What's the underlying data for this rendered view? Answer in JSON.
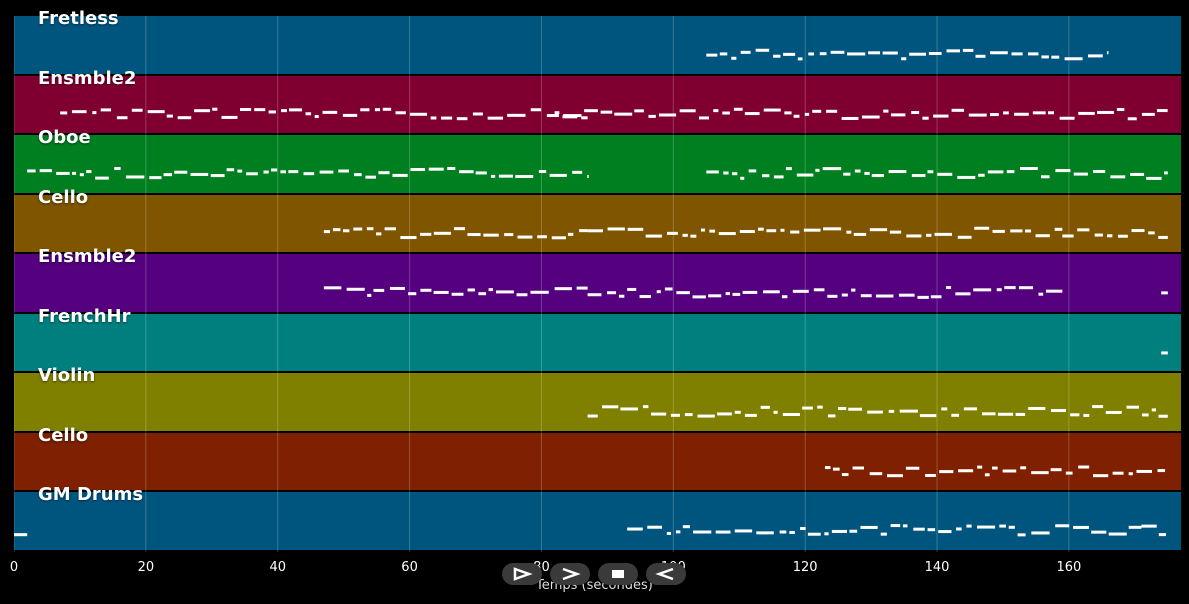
{
  "chart_data": {
    "type": "piano-roll",
    "xlabel": "Temps (secondes)",
    "xlim": [
      0,
      177
    ],
    "x_ticks": [
      0,
      20,
      40,
      60,
      80,
      100,
      120,
      140,
      160
    ],
    "grid": true,
    "tracks": [
      {
        "name": "Fretless",
        "color": "#00557f",
        "segments": [
          [
            105,
            166
          ]
        ]
      },
      {
        "name": "Ensmble2",
        "color": "#7f0030",
        "segments": [
          [
            7,
            87
          ],
          [
            82,
            175
          ]
        ]
      },
      {
        "name": "Oboe",
        "color": "#007f20",
        "segments": [
          [
            2,
            87
          ],
          [
            105,
            175
          ]
        ]
      },
      {
        "name": "Cello",
        "color": "#7f5500",
        "segments": [
          [
            47,
            87
          ],
          [
            87,
            159
          ],
          [
            159,
            175
          ]
        ]
      },
      {
        "name": "Ensmble2",
        "color": "#55007f",
        "segments": [
          [
            47,
            87
          ],
          [
            87,
            159
          ],
          [
            174,
            175
          ]
        ]
      },
      {
        "name": "FrenchHr",
        "color": "#007f7f",
        "segments": [
          [
            174,
            175
          ]
        ]
      },
      {
        "name": "Violin",
        "color": "#7f7f00",
        "segments": [
          [
            87,
            175
          ]
        ]
      },
      {
        "name": "Cello",
        "color": "#7f2000",
        "segments": [
          [
            123,
            175
          ]
        ]
      },
      {
        "name": "GM Drums",
        "color": "#00557f",
        "segments": [
          [
            0,
            2
          ],
          [
            93,
            171
          ],
          [
            171,
            175
          ]
        ]
      }
    ]
  },
  "transport": {
    "play_label": "play",
    "forward_label": "forward",
    "stop_label": "stop",
    "back_label": "back"
  }
}
